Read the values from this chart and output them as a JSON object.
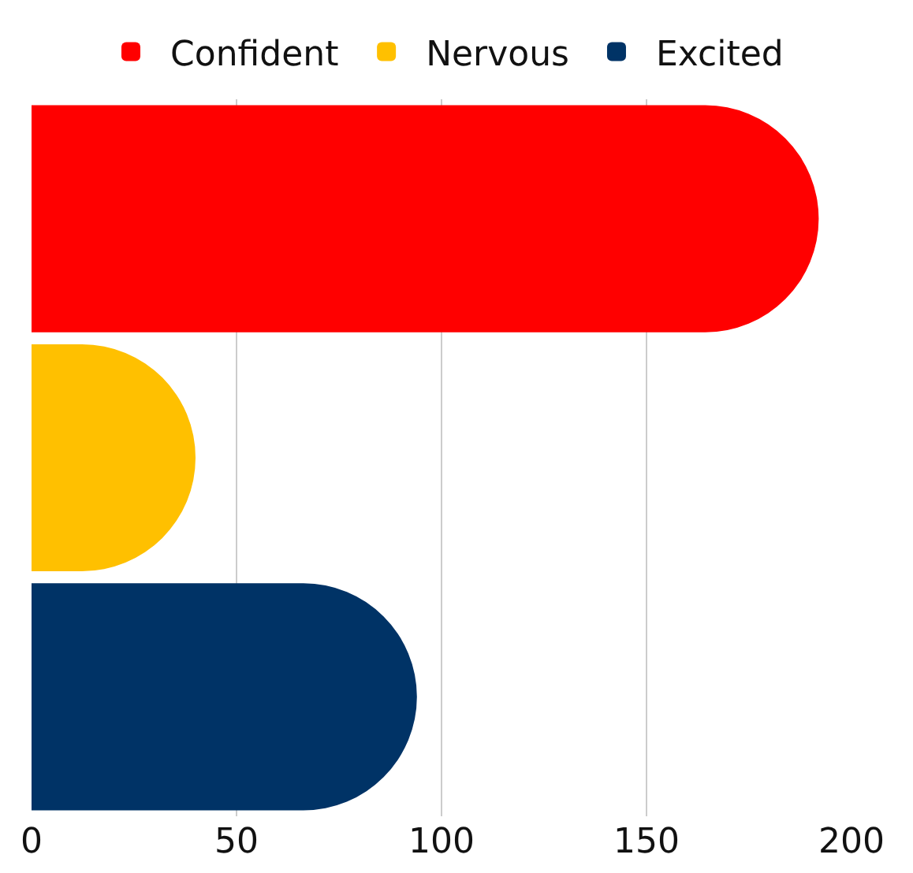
{
  "chart_data": {
    "type": "bar",
    "orientation": "horizontal",
    "categories": [
      null,
      null,
      null
    ],
    "series": [
      {
        "name": "Confident",
        "color": "#ff0000",
        "values": [
          192,
          null,
          null
        ]
      },
      {
        "name": "Nervous",
        "color": "#ffc000",
        "values": [
          null,
          40,
          null
        ]
      },
      {
        "name": "Excited",
        "color": "#003366",
        "values": [
          null,
          null,
          94
        ]
      }
    ],
    "xlim": [
      0,
      200
    ],
    "xticks": [
      0,
      50,
      100,
      150,
      200
    ],
    "grid": "x",
    "legend": "top",
    "tick_labels": "x"
  }
}
